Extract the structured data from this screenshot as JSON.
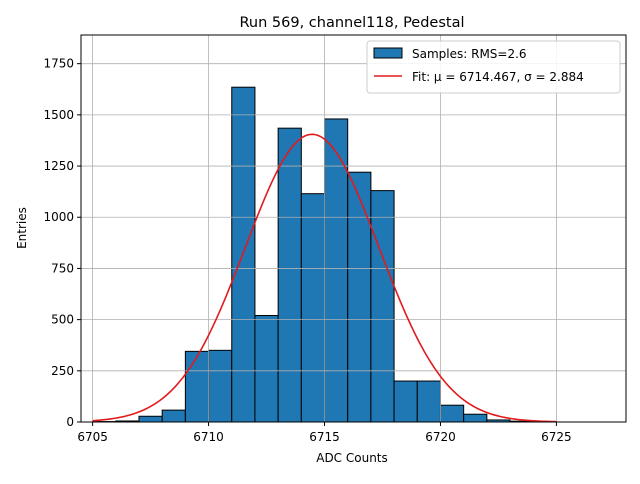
{
  "chart_data": {
    "type": "bar",
    "title": "Run 569, channel118, Pedestal",
    "xlabel": "ADC Counts",
    "ylabel": "Entries",
    "xlim": [
      6704.5,
      6728
    ],
    "ylim": [
      0,
      1890
    ],
    "x_ticks": [
      6705,
      6710,
      6715,
      6720,
      6725
    ],
    "y_ticks": [
      0,
      250,
      500,
      750,
      1000,
      1250,
      1500,
      1750
    ],
    "grid": true,
    "legend_position": "top-right",
    "histogram": {
      "name": "Samples: RMS=2.6",
      "bin_edges": [
        6705,
        6706,
        6707,
        6708,
        6709,
        6710,
        6711,
        6712,
        6713,
        6714,
        6715,
        6716,
        6717,
        6718,
        6719,
        6720,
        6721,
        6722,
        6723,
        6724
      ],
      "counts": [
        2,
        5,
        28,
        58,
        345,
        350,
        1635,
        520,
        1435,
        1115,
        1480,
        1220,
        1130,
        200,
        200,
        82,
        38,
        10,
        4
      ]
    },
    "fit": {
      "name": "Fit: μ = 6714.467, σ = 2.884",
      "mu": 6714.467,
      "sigma": 2.884,
      "amplitude": 1405,
      "x_range": [
        6705,
        6725
      ]
    },
    "colors": {
      "bar_fill": "#1f77b4",
      "bar_edge": "#000000",
      "fit_line": "#e31a1c",
      "grid": "#b0b0b0"
    }
  }
}
